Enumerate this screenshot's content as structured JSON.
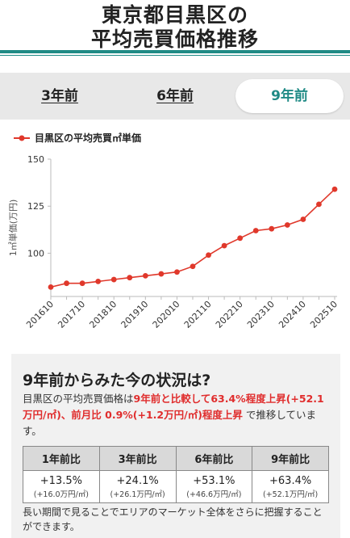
{
  "title": {
    "line1": "東京都目黒区の",
    "line2": "平均売買価格推移"
  },
  "tabs": [
    {
      "label": "3年前"
    },
    {
      "label": "6年前"
    },
    {
      "label": "9年前"
    }
  ],
  "chart_data": {
    "type": "line",
    "legend": "目黒区の平均売買㎡単価",
    "ylabel": "1㎡単価(万円)",
    "ylim": [
      77,
      150
    ],
    "yticks": [
      100,
      125,
      150
    ],
    "x": [
      "201610",
      "201704",
      "201710",
      "201804",
      "201810",
      "201904",
      "201910",
      "202004",
      "202010",
      "202104",
      "202110",
      "202204",
      "202210",
      "202304",
      "202310",
      "202404",
      "202410",
      "202504",
      "202510"
    ],
    "xtick_labels": [
      "201610",
      "201710",
      "201810",
      "201910",
      "202010",
      "202110",
      "202210",
      "202310",
      "202410",
      "202510"
    ],
    "series": [
      {
        "name": "目黒区の平均売買㎡単価",
        "color": "#e0382b",
        "values": [
          82.0,
          84.0,
          84.0,
          85.0,
          86.0,
          87.0,
          88.0,
          89.0,
          90.0,
          93.0,
          99.0,
          104.0,
          108.0,
          112.0,
          113.0,
          115.0,
          118.0,
          126.0,
          134.0
        ]
      }
    ],
    "grid": false
  },
  "summary": {
    "heading": "9年前からみた今の状況は?",
    "text_prefix": "目黒区の平均売買価格は",
    "highlight": "9年前と比較して63.4%程度上昇(+52.1万円/㎡)、前月比 0.9%(+1.2万円/㎡)程度上昇",
    "text_suffix": "で推移しています。",
    "table_headers": [
      "1年前比",
      "3年前比",
      "6年前比",
      "9年前比"
    ],
    "table_values": [
      {
        "pct": "+13.5%",
        "amt": "(+16.0万円/㎡)"
      },
      {
        "pct": "+24.1%",
        "amt": "(+26.1万円/㎡)"
      },
      {
        "pct": "+53.1%",
        "amt": "(+46.6万円/㎡)"
      },
      {
        "pct": "+63.4%",
        "amt": "(+52.1万円/㎡)"
      }
    ],
    "note": "長い期間で見ることでエリアのマーケット全体をさらに把握することができます。"
  }
}
